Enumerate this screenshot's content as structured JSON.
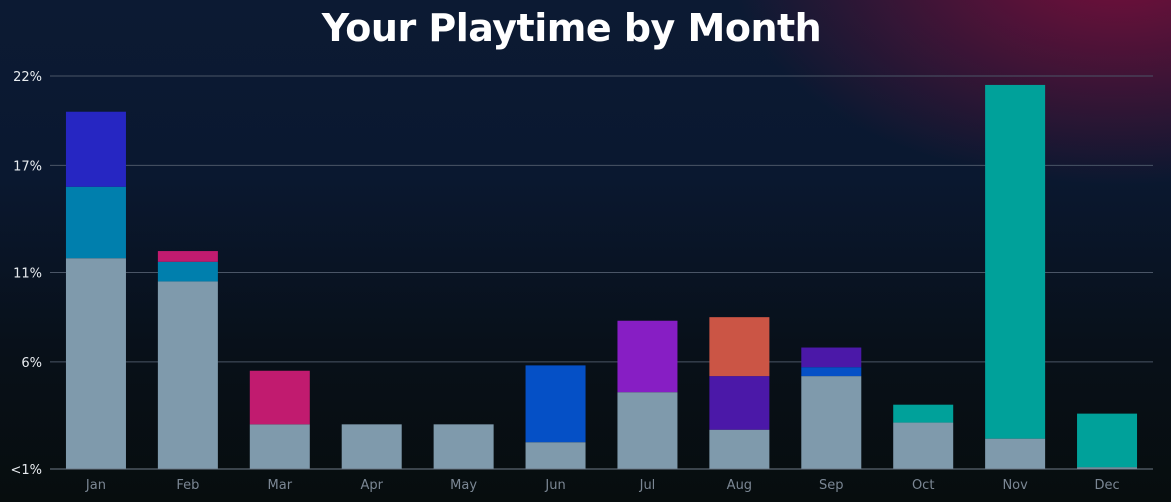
{
  "title": "Your Playtime by Month",
  "chart_data": {
    "type": "bar",
    "stacked": true,
    "title": "Your Playtime by Month",
    "xlabel": "",
    "ylabel": "",
    "categories": [
      "Jan",
      "Feb",
      "Mar",
      "Apr",
      "May",
      "Jun",
      "Jul",
      "Aug",
      "Sep",
      "Oct",
      "Nov",
      "Dec"
    ],
    "y_ticks": [
      {
        "value": 0,
        "label": "<1%"
      },
      {
        "value": 6,
        "label": "6%"
      },
      {
        "value": 11,
        "label": "11%"
      },
      {
        "value": 17,
        "label": "17%"
      },
      {
        "value": 22,
        "label": "22%"
      }
    ],
    "ylim": [
      0,
      22
    ],
    "grid": true,
    "series": [
      {
        "color": "#7f9aac",
        "values": [
          11.8,
          10.5,
          2.5,
          2.5,
          2.5,
          1.5,
          4.3,
          2.2,
          5.2,
          2.6,
          1.7,
          0.1
        ]
      },
      {
        "color": "#007fad",
        "values": [
          4.0,
          1.1,
          0,
          0,
          0,
          0,
          0,
          0,
          0,
          0,
          0,
          0
        ]
      },
      {
        "color": "#2626c2",
        "values": [
          4.2,
          0,
          0,
          0,
          0,
          0,
          0,
          0,
          0,
          0,
          0,
          0
        ]
      },
      {
        "color": "#c11b6f",
        "values": [
          0,
          0.6,
          3.0,
          0,
          0,
          0,
          0,
          0,
          0,
          0,
          0,
          0
        ]
      },
      {
        "color": "#0550c6",
        "values": [
          0,
          0,
          0,
          0,
          0,
          4.3,
          0,
          0,
          0.5,
          0,
          0,
          0
        ]
      },
      {
        "color": "#871ec4",
        "values": [
          0,
          0,
          0,
          0,
          0,
          0,
          4.0,
          0,
          0,
          0,
          0,
          0
        ]
      },
      {
        "color": "#4b18a8",
        "values": [
          0,
          0,
          0,
          0,
          0,
          0,
          0,
          3.0,
          1.1,
          0,
          0,
          0
        ]
      },
      {
        "color": "#cb5545",
        "values": [
          0,
          0,
          0,
          0,
          0,
          0,
          0,
          3.3,
          0,
          0,
          0,
          0
        ]
      },
      {
        "color": "#00a19a",
        "values": [
          0,
          0,
          0,
          0,
          0,
          0,
          0,
          0,
          0,
          1.0,
          19.8,
          3.0
        ]
      }
    ]
  }
}
